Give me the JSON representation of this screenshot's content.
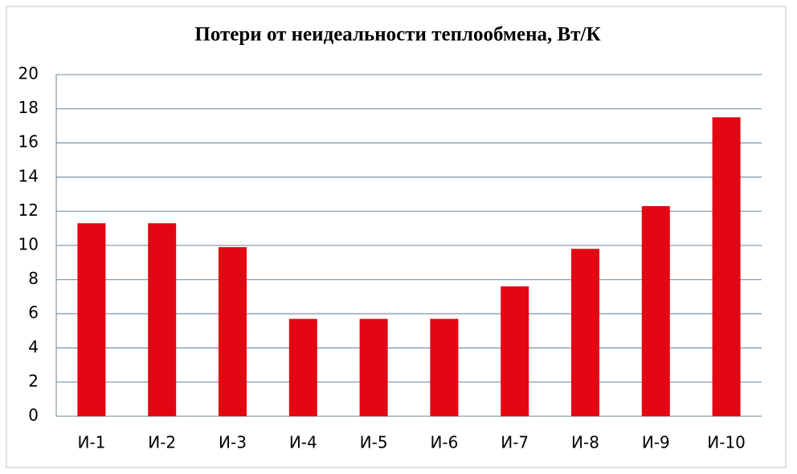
{
  "chart_data": {
    "type": "bar",
    "title": "Потери от неидеальности теплообмена, Вт/К",
    "categories": [
      "И-1",
      "И-2",
      "И-3",
      "И-4",
      "И-5",
      "И-6",
      "И-7",
      "И-8",
      "И-9",
      "И-10"
    ],
    "values": [
      11.3,
      11.3,
      9.9,
      5.7,
      5.7,
      5.7,
      7.6,
      9.8,
      12.3,
      17.5
    ],
    "color": "#e30613",
    "ylim": [
      0,
      20
    ],
    "yticks": [
      0,
      2,
      4,
      6,
      8,
      10,
      12,
      14,
      16,
      18,
      20
    ],
    "grid": true
  }
}
